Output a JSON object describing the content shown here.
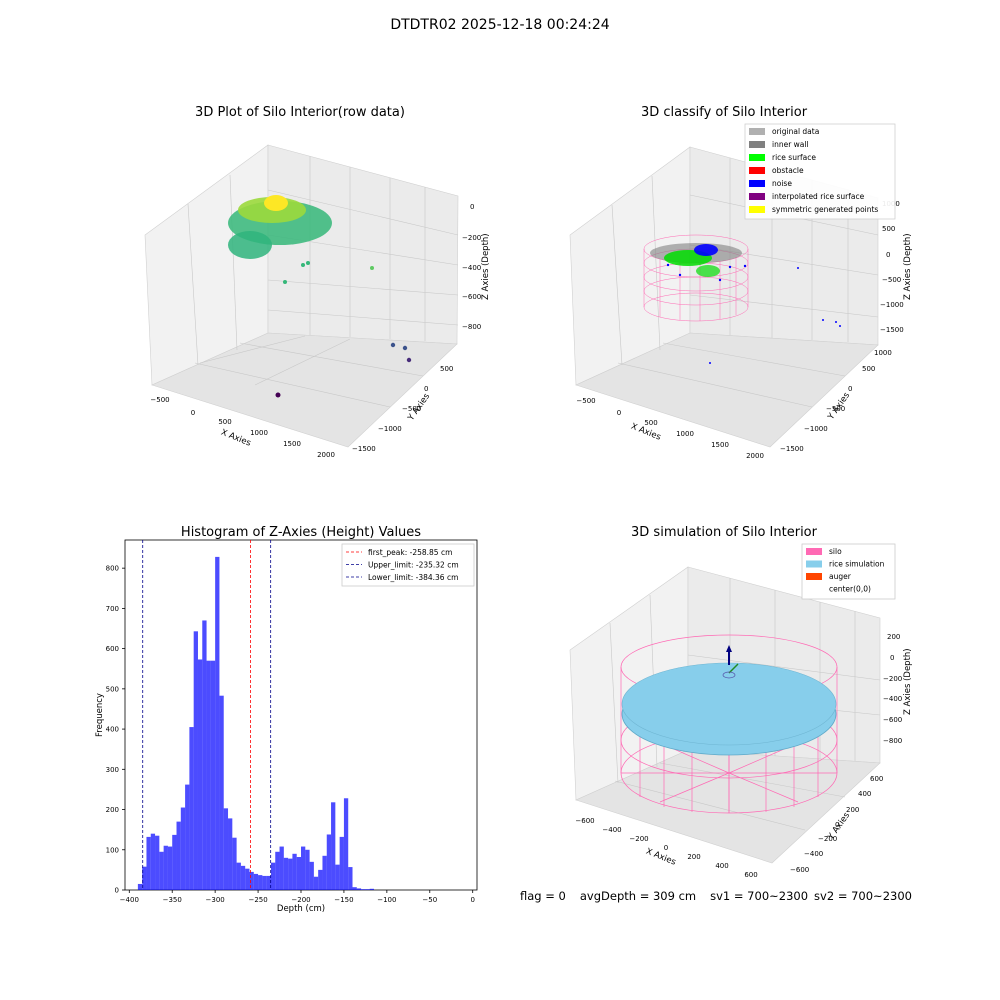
{
  "figure": {
    "suptitle": "DTDTR02 2025-12-18 00:24:24"
  },
  "footer": {
    "flag": "flag = 0",
    "avg_depth": "avgDepth = 309 cm",
    "sv1": "sv1 = 700~2300",
    "sv2": "sv2 = 700~2300"
  },
  "colors": {
    "viridis_low": "#3b528b",
    "viridis_mid": "#35b779",
    "viridis_high": "#fde725",
    "silo": "#ff69b4",
    "rice_simulation": "#87ceeb",
    "auger": "#ff4500",
    "hist_bar": "#0000ff"
  },
  "chart_data": [
    {
      "type": "scatter",
      "title": "3D Plot of Silo Interior(row data)",
      "xlabel": "X Axies",
      "ylabel": "Y Axies",
      "zlabel": "Z Axies (Depth)",
      "x_ticks": [
        "−500",
        "0",
        "500",
        "1000",
        "1500",
        "2000"
      ],
      "y_ticks": [
        "500",
        "0",
        "−500",
        "−1000",
        "−1500"
      ],
      "z_ticks": [
        "0",
        "−200",
        "−400",
        "−600",
        "−800"
      ],
      "grid": true
    },
    {
      "type": "scatter",
      "title": "3D classify of Silo Interior",
      "xlabel": "X Axies",
      "ylabel": "Y Axies",
      "zlabel": "Z Axies (Depth)",
      "x_ticks": [
        "−500",
        "0",
        "500",
        "1000",
        "1500",
        "2000"
      ],
      "y_ticks": [
        "1000",
        "500",
        "0",
        "−500",
        "−1000",
        "−1500"
      ],
      "z_ticks": [
        "1000",
        "500",
        "0",
        "−500",
        "−1000",
        "−1500"
      ],
      "legend": [
        {
          "label": "original data",
          "color": "#b0b0b0"
        },
        {
          "label": "inner wall",
          "color": "#808080"
        },
        {
          "label": "rice surface",
          "color": "#00ff00"
        },
        {
          "label": "obstacle",
          "color": "#ff0000"
        },
        {
          "label": "noise",
          "color": "#0000ff"
        },
        {
          "label": "interpolated rice surface",
          "color": "#800080"
        },
        {
          "label": "symmetric generated points",
          "color": "#ffff00"
        }
      ],
      "legend_placement": "top-right",
      "grid": true
    },
    {
      "type": "bar",
      "title": "Histogram of Z-Axies (Height) Values",
      "xlabel": "Depth (cm)",
      "ylabel": "Frequency",
      "bin_width": 5,
      "bins_start": [
        -390,
        -385,
        -380,
        -375,
        -370,
        -365,
        -360,
        -355,
        -350,
        -345,
        -340,
        -335,
        -330,
        -325,
        -320,
        -315,
        -310,
        -305,
        -300,
        -295,
        -290,
        -285,
        -280,
        -275,
        -270,
        -265,
        -260,
        -255,
        -250,
        -245,
        -240,
        -235,
        -230,
        -225,
        -220,
        -215,
        -210,
        -205,
        -200,
        -195,
        -190,
        -185,
        -180,
        -175,
        -170,
        -165,
        -160,
        -155,
        -150,
        -145,
        -140,
        -135,
        -130,
        -125,
        -120,
        -115,
        -110,
        -105,
        -100,
        -95,
        -90,
        -85,
        -80,
        -75,
        -70,
        -65,
        -60,
        -55,
        -50,
        -45,
        -40,
        -35,
        -30,
        -25,
        -20,
        -15,
        -10,
        -5
      ],
      "values": [
        15,
        58,
        132,
        140,
        135,
        95,
        110,
        108,
        137,
        170,
        205,
        262,
        405,
        643,
        573,
        670,
        570,
        570,
        828,
        483,
        203,
        178,
        130,
        68,
        60,
        53,
        45,
        40,
        37,
        35,
        35,
        68,
        95,
        108,
        80,
        78,
        90,
        82,
        108,
        100,
        70,
        33,
        50,
        85,
        138,
        218,
        63,
        132,
        228,
        57,
        7,
        4,
        2,
        2,
        3,
        0,
        0,
        0,
        0,
        0,
        0,
        0,
        0,
        0,
        0,
        0,
        0,
        0,
        0,
        0,
        0,
        0,
        0,
        0,
        0,
        0,
        0,
        0
      ],
      "xlim": [
        -405,
        5
      ],
      "ylim": [
        0,
        870
      ],
      "x_ticks": [
        -400,
        -350,
        -300,
        -250,
        -200,
        -150,
        -100,
        -50,
        0
      ],
      "y_ticks": [
        0,
        100,
        200,
        300,
        400,
        500,
        600,
        700,
        800
      ],
      "vlines": [
        {
          "name": "first_peak: -258.85 cm",
          "x": -258.85,
          "color": "#ff0000"
        },
        {
          "name": "Upper_limit: -235.32 cm",
          "x": -235.32,
          "color": "#00008b"
        },
        {
          "name": "Lower_limit: -384.36 cm",
          "x": -384.36,
          "color": "#00008b"
        }
      ],
      "legend_placement": "top-right"
    },
    {
      "type": "scatter",
      "title": "3D simulation of Silo Interior",
      "xlabel": "X Axies",
      "ylabel": "Y Axies",
      "zlabel": "Z Axies (Depth)",
      "x_ticks": [
        "−600",
        "−400",
        "−200",
        "0",
        "200",
        "400",
        "600"
      ],
      "y_ticks": [
        "600",
        "400",
        "200",
        "0",
        "−200",
        "−400",
        "−600"
      ],
      "z_ticks": [
        "200",
        "0",
        "−200",
        "−400",
        "−600",
        "−800"
      ],
      "legend": [
        {
          "label": "silo",
          "color": "#ff69b4"
        },
        {
          "label": "rice simulation",
          "color": "#87ceeb"
        },
        {
          "label": "auger",
          "color": "#ff4500"
        },
        {
          "label": "center(0,0)",
          "color": ""
        }
      ],
      "legend_placement": "top-right",
      "grid": true
    }
  ]
}
